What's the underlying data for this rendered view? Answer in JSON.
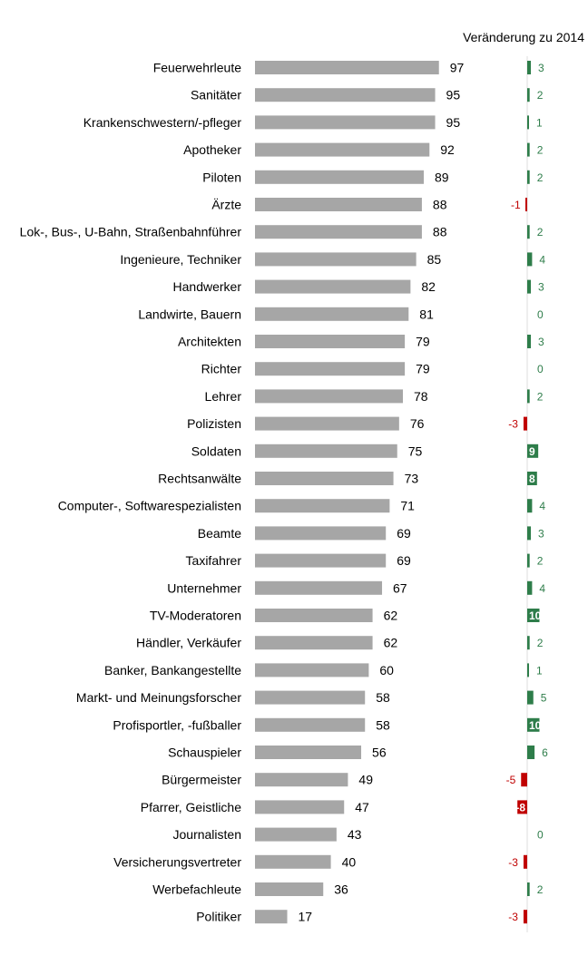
{
  "chart_data": [
    {
      "type": "bar",
      "orientation": "horizontal",
      "categories": [
        "Feuerwehrleute",
        "Sanitäter",
        "Krankenschwestern/-pfleger",
        "Apotheker",
        "Piloten",
        "Ärzte",
        "Lok-, Bus-, U-Bahn, Straßenbahnführer",
        "Ingenieure, Techniker",
        "Handwerker",
        "Landwirte, Bauern",
        "Architekten",
        "Richter",
        "Lehrer",
        "Polizisten",
        "Soldaten",
        "Rechtsanwälte",
        "Computer-, Softwarespezialisten",
        "Beamte",
        "Taxifahrer",
        "Unternehmer",
        "TV-Moderatoren",
        "Händler, Verkäufer",
        "Banker, Bankangestellte",
        "Markt- und Meinungsforscher",
        "Profisportler, -fußballer",
        "Schauspieler",
        "Bürgermeister",
        "Pfarrer, Geistliche",
        "Journalisten",
        "Versicherungsvertreter",
        "Werbefachleute",
        "Politiker"
      ],
      "values": [
        97,
        95,
        95,
        92,
        89,
        88,
        88,
        85,
        82,
        81,
        79,
        79,
        78,
        76,
        75,
        73,
        71,
        69,
        69,
        67,
        62,
        62,
        60,
        58,
        58,
        56,
        49,
        47,
        43,
        40,
        36,
        17
      ],
      "xlim": [
        0,
        100
      ],
      "grid": false,
      "colors": {
        "bar": "#a6a6a6"
      }
    },
    {
      "type": "bar",
      "orientation": "horizontal",
      "title": "Veränderung zu 2014",
      "categories": [
        "Feuerwehrleute",
        "Sanitäter",
        "Krankenschwestern/-pfleger",
        "Apotheker",
        "Piloten",
        "Ärzte",
        "Lok-, Bus-, U-Bahn, Straßenbahnführer",
        "Ingenieure, Techniker",
        "Handwerker",
        "Landwirte, Bauern",
        "Architekten",
        "Richter",
        "Lehrer",
        "Polizisten",
        "Soldaten",
        "Rechtsanwälte",
        "Computer-, Softwarespezialisten",
        "Beamte",
        "Taxifahrer",
        "Unternehmer",
        "TV-Moderatoren",
        "Händler, Verkäufer",
        "Banker, Bankangestellte",
        "Markt- und Meinungsforscher",
        "Profisportler, -fußballer",
        "Schauspieler",
        "Bürgermeister",
        "Pfarrer, Geistliche",
        "Journalisten",
        "Versicherungsvertreter",
        "Werbefachleute",
        "Politiker"
      ],
      "values": [
        3,
        2,
        1,
        2,
        2,
        -1,
        2,
        4,
        3,
        0,
        3,
        0,
        2,
        -3,
        9,
        8,
        4,
        3,
        2,
        4,
        10,
        2,
        1,
        5,
        10,
        6,
        -5,
        -8,
        0,
        -3,
        2,
        -3
      ],
      "labels_inside": [
        false,
        false,
        false,
        false,
        false,
        false,
        false,
        false,
        false,
        false,
        false,
        false,
        false,
        false,
        true,
        true,
        false,
        false,
        false,
        false,
        true,
        false,
        false,
        false,
        true,
        false,
        false,
        true,
        false,
        false,
        false,
        false
      ],
      "colors": {
        "positive": "#2e7d4a",
        "negative": "#c00000",
        "inside_label": "#ffffff",
        "axis": "#dcdcdc"
      }
    }
  ]
}
